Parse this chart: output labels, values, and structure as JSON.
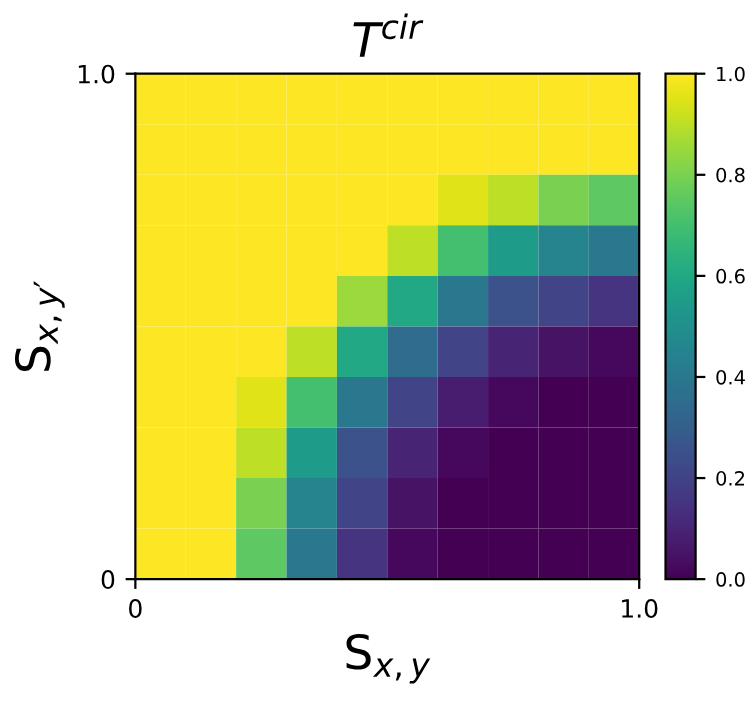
{
  "chart_data": {
    "type": "heatmap",
    "title": "T$^{cir}$",
    "xlabel": "S$_{x,y}$",
    "ylabel": "S$_{x,y′}$",
    "x": [
      0.05,
      0.15,
      0.25,
      0.35,
      0.45,
      0.55,
      0.65,
      0.75,
      0.85,
      0.95
    ],
    "y": [
      0.95,
      0.85,
      0.75,
      0.65,
      0.55,
      0.45,
      0.35,
      0.25,
      0.15,
      0.05
    ],
    "xlim": [
      0,
      1
    ],
    "xticks": [
      0,
      {
        "value": 1,
        "label": "1.0"
      }
    ],
    "ylim": [
      0,
      1
    ],
    "yticks": [
      0,
      {
        "value": 1,
        "label": "1.0"
      }
    ],
    "clim": [
      0,
      1
    ],
    "cticks": [
      {
        "value": 0,
        "label": "0.0"
      },
      0.2,
      0.4,
      0.6,
      0.8,
      {
        "value": 1,
        "label": "1.0"
      }
    ],
    "cells": [
      [
        1,
        1,
        1,
        1,
        1,
        1,
        1,
        1,
        1,
        1
      ],
      [
        1,
        1,
        1,
        1,
        1,
        1,
        1,
        1,
        1,
        1
      ],
      [
        1,
        1,
        1,
        1,
        1,
        1,
        0.95,
        0.9,
        0.8,
        0.75
      ],
      [
        1,
        1,
        1,
        1,
        1,
        0.9,
        0.7,
        0.55,
        0.45,
        0.4
      ],
      [
        1,
        1,
        1,
        1,
        0.85,
        0.6,
        0.4,
        0.25,
        0.2,
        0.15
      ],
      [
        1,
        1,
        1,
        0.9,
        0.6,
        0.35,
        0.2,
        0.1,
        0.05,
        0.02
      ],
      [
        1,
        1,
        0.95,
        0.7,
        0.4,
        0.2,
        0.08,
        0.02,
        0,
        0
      ],
      [
        1,
        1,
        0.9,
        0.55,
        0.25,
        0.1,
        0.02,
        0,
        0,
        0
      ],
      [
        1,
        1,
        0.8,
        0.45,
        0.2,
        0.05,
        0,
        0,
        0,
        0
      ],
      [
        1,
        1,
        0.75,
        0.4,
        0.15,
        0.02,
        0,
        0,
        0,
        0
      ]
    ]
  }
}
